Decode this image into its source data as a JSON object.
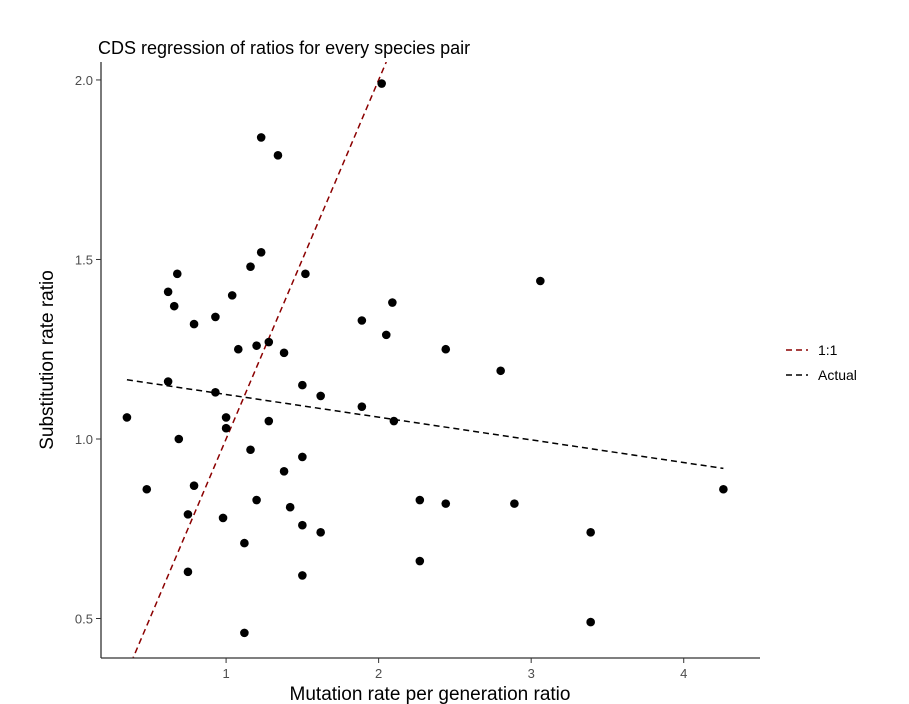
{
  "chart_data": {
    "type": "scatter",
    "title": "CDS regression of ratios for every species pair",
    "xlabel": "Mutation rate per generation ratio",
    "ylabel": "Substitution rate ratio",
    "xlim": [
      0.18,
      4.5
    ],
    "ylim": [
      0.39,
      2.05
    ],
    "xticks": [
      1,
      2,
      3,
      4
    ],
    "yticks": [
      0.5,
      1.0,
      1.5,
      2.0
    ],
    "ytick_labels": [
      "0.5",
      "1.0",
      "1.5",
      "2.0"
    ],
    "grid": false,
    "legend_position": "right",
    "points": [
      [
        0.35,
        1.06
      ],
      [
        0.48,
        0.86
      ],
      [
        0.62,
        1.41
      ],
      [
        0.62,
        1.16
      ],
      [
        0.66,
        1.37
      ],
      [
        0.68,
        1.46
      ],
      [
        0.69,
        1.0
      ],
      [
        0.75,
        0.79
      ],
      [
        0.75,
        0.63
      ],
      [
        0.79,
        1.32
      ],
      [
        0.79,
        0.87
      ],
      [
        0.93,
        1.34
      ],
      [
        0.93,
        1.13
      ],
      [
        0.98,
        0.78
      ],
      [
        1.0,
        1.06
      ],
      [
        1.0,
        1.03
      ],
      [
        1.04,
        1.4
      ],
      [
        1.08,
        1.25
      ],
      [
        1.12,
        0.71
      ],
      [
        1.12,
        0.46
      ],
      [
        1.16,
        1.48
      ],
      [
        1.16,
        0.97
      ],
      [
        1.2,
        1.26
      ],
      [
        1.2,
        0.83
      ],
      [
        1.23,
        1.84
      ],
      [
        1.23,
        1.52
      ],
      [
        1.28,
        1.27
      ],
      [
        1.28,
        1.05
      ],
      [
        1.34,
        1.79
      ],
      [
        1.38,
        1.24
      ],
      [
        1.38,
        0.91
      ],
      [
        1.42,
        0.81
      ],
      [
        1.5,
        1.15
      ],
      [
        1.5,
        0.95
      ],
      [
        1.5,
        0.76
      ],
      [
        1.5,
        0.62
      ],
      [
        1.52,
        1.46
      ],
      [
        1.62,
        1.12
      ],
      [
        1.62,
        0.74
      ],
      [
        1.89,
        1.33
      ],
      [
        1.89,
        1.09
      ],
      [
        2.02,
        1.99
      ],
      [
        2.05,
        1.29
      ],
      [
        2.09,
        1.38
      ],
      [
        2.1,
        1.05
      ],
      [
        2.27,
        0.83
      ],
      [
        2.27,
        0.66
      ],
      [
        2.44,
        1.25
      ],
      [
        2.44,
        0.82
      ],
      [
        2.8,
        1.19
      ],
      [
        2.89,
        0.82
      ],
      [
        3.06,
        1.44
      ],
      [
        3.39,
        0.74
      ],
      [
        3.39,
        0.49
      ],
      [
        4.26,
        0.86
      ]
    ],
    "series": [
      {
        "name": "1:1",
        "color": "#8b0000",
        "style": "dashed",
        "x": [
          0.25,
          2.05
        ],
        "y": [
          0.25,
          2.05
        ]
      },
      {
        "name": "Actual",
        "color": "#000000",
        "style": "dashed",
        "x": [
          0.35,
          4.26
        ],
        "y": [
          1.165,
          0.918
        ]
      }
    ]
  }
}
